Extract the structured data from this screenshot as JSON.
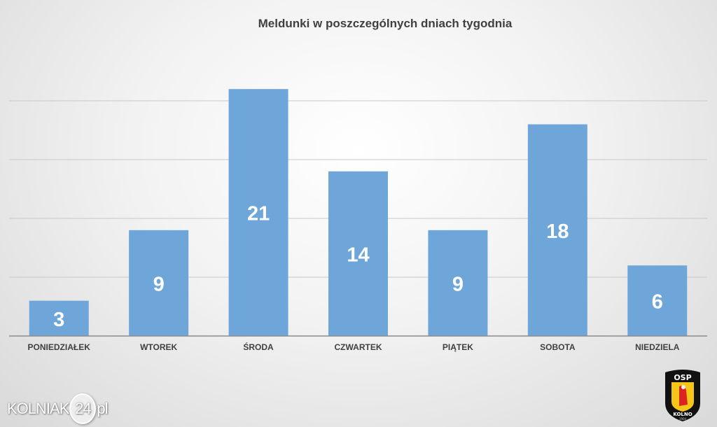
{
  "chart_data": {
    "type": "bar",
    "title": "Meldunki w poszczególnych dniach tygodnia",
    "categories": [
      "PONIEDZIAŁEK",
      "WTOREK",
      "ŚRODA",
      "CZWARTEK",
      "PIĄTEK",
      "SOBOTA",
      "NIEDZIELA"
    ],
    "values": [
      3,
      9,
      21,
      14,
      9,
      18,
      6
    ],
    "xlabel": "",
    "ylabel": "",
    "ylim": [
      0,
      25
    ],
    "grid": true,
    "bar_color": "#6fa6d9",
    "data_labels": true
  },
  "watermark": {
    "text_left": "KOLNIAK",
    "text_circle": "24",
    "text_right": "pl"
  },
  "logo": {
    "top": "OSP",
    "bottom": "KOLNO",
    "year": "1904"
  }
}
